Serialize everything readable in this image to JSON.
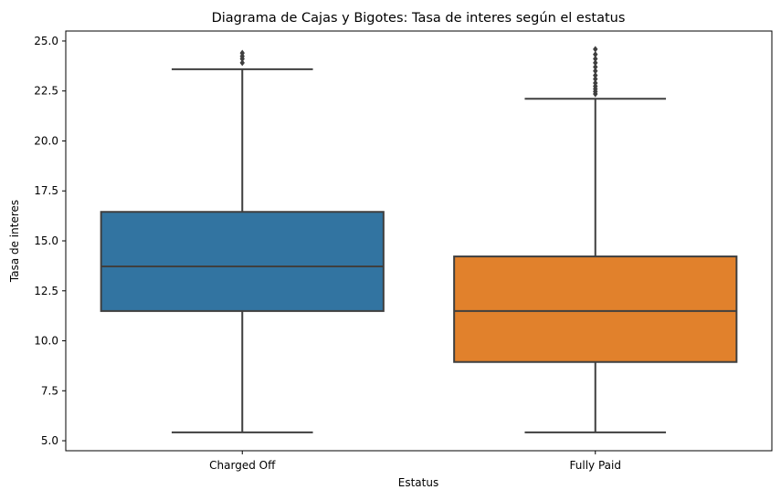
{
  "chart_data": {
    "type": "box",
    "title": "Diagrama de Cajas y Bigotes: Tasa de interes según el estatus",
    "xlabel": "Estatus",
    "ylabel": "Tasa de interes",
    "ylim": [
      4.5,
      25.5
    ],
    "yticks": [
      "5.0",
      "7.5",
      "10.0",
      "12.5",
      "15.0",
      "17.5",
      "20.0",
      "22.5",
      "25.0"
    ],
    "categories": [
      "Charged Off",
      "Fully Paid"
    ],
    "grid": false,
    "legend": "none",
    "series": [
      {
        "category": "Charged Off",
        "color": "#3274a1",
        "whisker_low": 5.42,
        "q1": 11.49,
        "median": 13.72,
        "q3": 16.45,
        "whisker_high": 23.59,
        "outliers": [
          23.91,
          24.11,
          24.24,
          24.4
        ]
      },
      {
        "category": "Fully Paid",
        "color": "#e1812c",
        "whisker_low": 5.42,
        "q1": 8.94,
        "median": 11.49,
        "q3": 14.22,
        "whisker_high": 22.11,
        "outliers": [
          22.35,
          22.47,
          22.6,
          22.74,
          22.9,
          23.1,
          23.28,
          23.5,
          23.7,
          23.91,
          24.11,
          24.33,
          24.59
        ]
      }
    ],
    "colors": {
      "line": "#3f3f3f",
      "axis": "#000000"
    }
  }
}
